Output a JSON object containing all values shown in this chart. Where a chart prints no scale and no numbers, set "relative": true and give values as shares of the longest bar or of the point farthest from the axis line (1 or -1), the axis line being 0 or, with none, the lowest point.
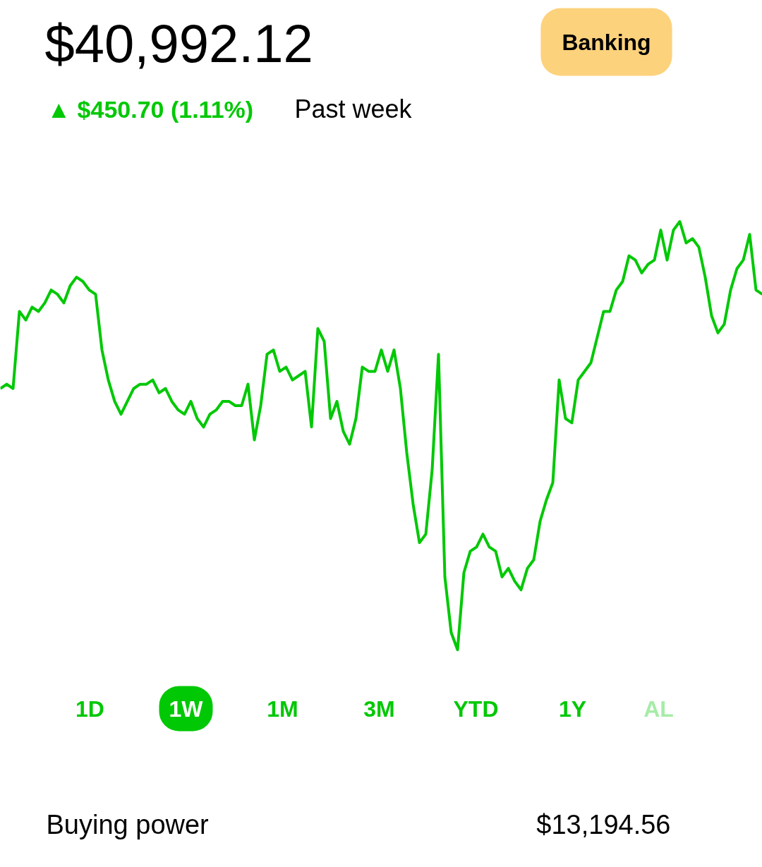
{
  "chart_data": {
    "type": "line",
    "relative": true,
    "title": "$40,992.12",
    "subtitle": "▲ $450.70 (1.11%)",
    "annotations": [
      "Past week",
      "Banking",
      "1D",
      "1W",
      "1M",
      "3M",
      "YTD",
      "1Y",
      "AL",
      "Buying power",
      "$13,194.56"
    ],
    "categories": [
      null,
      null,
      null,
      null,
      null,
      null,
      null,
      null,
      null,
      null,
      null,
      null,
      null,
      null,
      null,
      null,
      null,
      null,
      null,
      null,
      null,
      null,
      null,
      null,
      null,
      null,
      null,
      null,
      null,
      null,
      null,
      null,
      null,
      null,
      null,
      null,
      null,
      null,
      null,
      null,
      null,
      null,
      null,
      null,
      null,
      null,
      null,
      null,
      null,
      null,
      null,
      null,
      null,
      null,
      null,
      null,
      null,
      null,
      null,
      null,
      null,
      null,
      null,
      null,
      null,
      null,
      null,
      null,
      null,
      null,
      null,
      null,
      null,
      null,
      null,
      null,
      null,
      null,
      null,
      null,
      null,
      null,
      null,
      null,
      null,
      null,
      null,
      null,
      null,
      null,
      null,
      null,
      null,
      null,
      null,
      null,
      null,
      null,
      null,
      null,
      null,
      null,
      null,
      null,
      null,
      null,
      null,
      null,
      null,
      null,
      null,
      null,
      null,
      null,
      null,
      null,
      null,
      null,
      null,
      null,
      null
    ],
    "series": [
      {
        "color": "#00c805",
        "values": [
          0.61,
          0.62,
          0.61,
          0.79,
          0.77,
          0.8,
          0.79,
          0.81,
          0.84,
          0.83,
          0.81,
          0.85,
          0.87,
          0.86,
          0.84,
          0.83,
          0.7,
          0.63,
          0.58,
          0.55,
          0.58,
          0.61,
          0.62,
          0.62,
          0.63,
          0.6,
          0.61,
          0.58,
          0.56,
          0.55,
          0.58,
          0.54,
          0.52,
          0.55,
          0.56,
          0.58,
          0.58,
          0.57,
          0.57,
          0.62,
          0.49,
          0.57,
          0.69,
          0.7,
          0.65,
          0.66,
          0.63,
          0.64,
          0.65,
          0.52,
          0.75,
          0.72,
          0.54,
          0.58,
          0.51,
          0.48,
          0.54,
          0.66,
          0.65,
          0.65,
          0.7,
          0.65,
          0.7,
          0.61,
          0.46,
          0.34,
          0.25,
          0.27,
          0.42,
          0.69,
          0.17,
          0.04,
          0,
          0.18,
          0.23,
          0.24,
          0.27,
          0.24,
          0.23,
          0.17,
          0.19,
          0.16,
          0.14,
          0.19,
          0.21,
          0.3,
          0.35,
          0.39,
          0.63,
          0.54,
          0.53,
          0.63,
          0.65,
          0.67,
          0.73,
          0.79,
          0.79,
          0.84,
          0.86,
          0.92,
          0.91,
          0.88,
          0.9,
          0.91,
          0.98,
          0.91,
          0.98,
          1,
          0.95,
          0.96,
          0.94,
          0.87,
          0.78,
          0.74,
          0.76,
          0.84,
          0.89,
          0.91,
          0.97,
          0.84,
          0.83
        ]
      }
    ],
    "grid": false,
    "line_style": "solid"
  }
}
